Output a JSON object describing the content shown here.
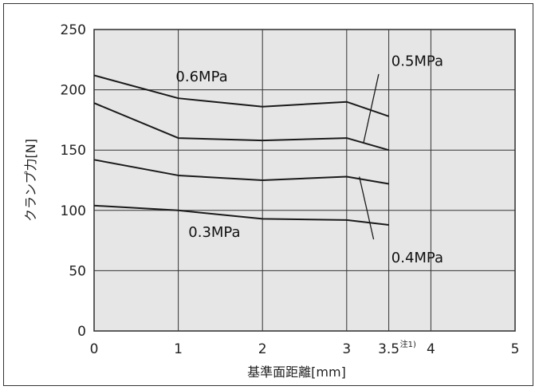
{
  "chart_data": {
    "type": "line",
    "xlabel": "基準面距離[mm]",
    "ylabel": "クランプ力[N]",
    "xlim": [
      0,
      5
    ],
    "ylim": [
      0,
      250
    ],
    "x_ticks": [
      {
        "value": 0,
        "label": "0"
      },
      {
        "value": 1,
        "label": "1"
      },
      {
        "value": 2,
        "label": "2"
      },
      {
        "value": 3,
        "label": "3"
      },
      {
        "value": 3.5,
        "label": "3.5",
        "superscript": "注1)"
      },
      {
        "value": 4,
        "label": "4"
      },
      {
        "value": 5,
        "label": "5"
      }
    ],
    "y_ticks": [
      0,
      50,
      100,
      150,
      200,
      250
    ],
    "grid": true,
    "x": [
      0,
      1,
      2,
      3,
      3.5
    ],
    "series": [
      {
        "name": "0.6MPa",
        "values": [
          212,
          193,
          186,
          190,
          178
        ]
      },
      {
        "name": "0.5MPa",
        "values": [
          189,
          160,
          158,
          160,
          150
        ]
      },
      {
        "name": "0.4MPa",
        "values": [
          142,
          129,
          125,
          128,
          122
        ]
      },
      {
        "name": "0.3MPa",
        "values": [
          104,
          100,
          93,
          92,
          88
        ]
      }
    ],
    "colors": {
      "plot_background": "#e6e6e6",
      "line": "#1a1a1a",
      "grid": "#333333"
    }
  }
}
